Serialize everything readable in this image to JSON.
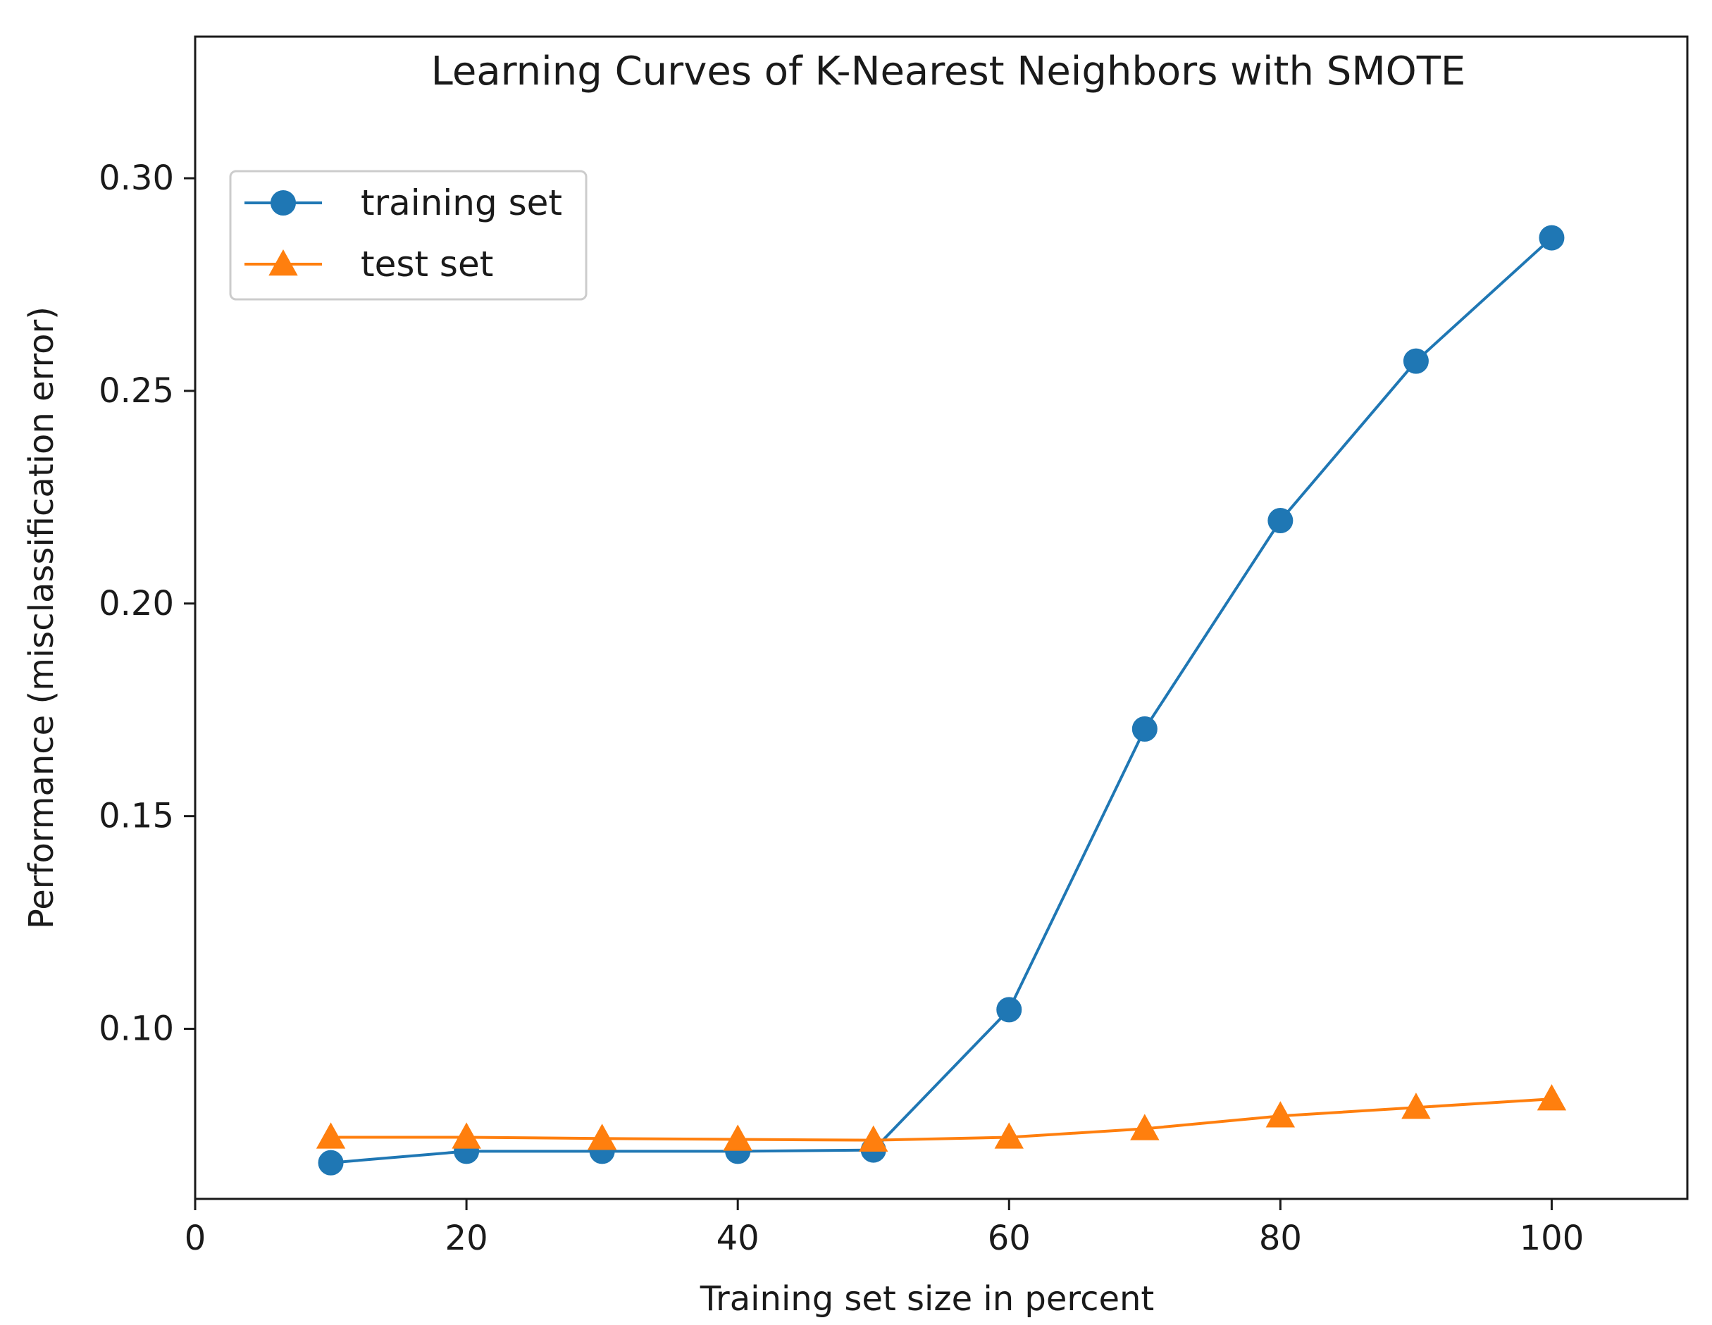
{
  "chart_data": {
    "type": "line",
    "title": "Learning Curves of K-Nearest Neighbors with SMOTE",
    "xlabel": "Training set size in percent",
    "ylabel": "Performance (misclassification error)",
    "xlim": [
      0,
      110
    ],
    "ylim": [
      0.06,
      0.3333
    ],
    "xticks": [
      0,
      20,
      40,
      60,
      80,
      100
    ],
    "xtick_labels": [
      "0",
      "20",
      "40",
      "60",
      "80",
      "100"
    ],
    "yticks": [
      0.1,
      0.15,
      0.2,
      0.25,
      0.3
    ],
    "ytick_labels": [
      "0.10",
      "0.15",
      "0.20",
      "0.25",
      "0.30"
    ],
    "grid": false,
    "legend_position": "upper-left",
    "x": [
      10,
      20,
      30,
      40,
      50,
      60,
      70,
      80,
      90,
      100
    ],
    "series": [
      {
        "name": "training set",
        "marker": "circle",
        "color": "#1f77b4",
        "values": [
          0.0685,
          0.0712,
          0.0712,
          0.0712,
          0.0715,
          0.1045,
          0.1705,
          0.2195,
          0.257,
          0.286
        ]
      },
      {
        "name": "test set",
        "marker": "triangle",
        "color": "#ff7f0e",
        "values": [
          0.0745,
          0.0745,
          0.0742,
          0.074,
          0.0738,
          0.0745,
          0.0765,
          0.0795,
          0.0815,
          0.0835
        ]
      }
    ]
  }
}
